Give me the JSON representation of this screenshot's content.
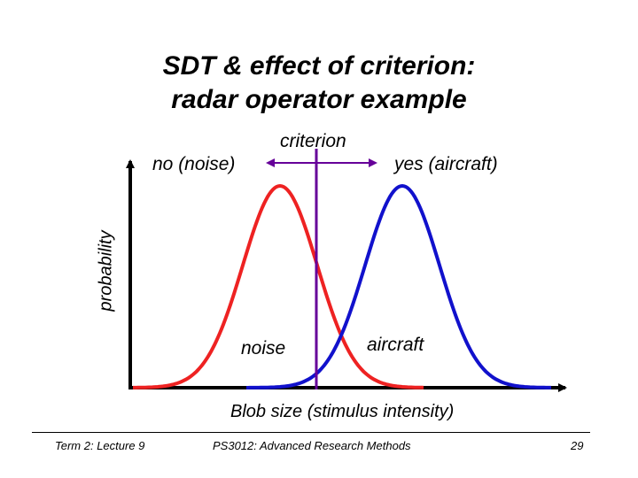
{
  "slide": {
    "title_line1": "SDT & effect of criterion:",
    "title_line2": "radar operator example"
  },
  "diagram": {
    "label_no": "no (noise)",
    "label_criterion": "criterion",
    "label_yes": "yes (aircraft)",
    "y_axis_label": "probability",
    "label_noise": "noise",
    "label_aircraft": "aircraft",
    "x_axis_label": "Blob size (stimulus intensity)",
    "colors": {
      "noise_curve": "#ee2222",
      "aircraft_curve": "#1111cc",
      "criterion_line": "#660099",
      "axes": "#000000"
    }
  },
  "footer": {
    "left": "Term 2: Lecture 9",
    "center": "PS3012: Advanced Research Methods",
    "page_number": "29"
  }
}
